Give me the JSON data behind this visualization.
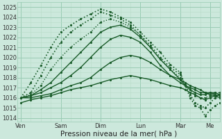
{
  "bg_color": "#cce8dc",
  "grid_color_major": "#99ccb3",
  "grid_color_minor": "#b8ddc8",
  "line_color": "#1a5c2a",
  "ylabel_values": [
    1014,
    1015,
    1016,
    1017,
    1018,
    1019,
    1020,
    1021,
    1022,
    1023,
    1024,
    1025
  ],
  "ylim": [
    1013.6,
    1025.5
  ],
  "x_day_labels": [
    "Ven",
    "Sam",
    "Dim",
    "Lun",
    "Mar",
    "Me"
  ],
  "x_day_positions": [
    0,
    24,
    48,
    72,
    96,
    114
  ],
  "xlabel": "Pression niveau de la mer( hPa )",
  "xlim": [
    -2,
    120
  ],
  "lines": [
    {
      "x": [
        0,
        6,
        12,
        18,
        24,
        30,
        36,
        42,
        48,
        54,
        60,
        66,
        72,
        78,
        84,
        90,
        96,
        99,
        102,
        105,
        108,
        111,
        114,
        117,
        120
      ],
      "y": [
        1016,
        1017.5,
        1019.2,
        1021.0,
        1022.5,
        1023.2,
        1023.8,
        1024.3,
        1024.8,
        1024.5,
        1024.0,
        1023.5,
        1022.5,
        1021.5,
        1020.5,
        1019.3,
        1018.5,
        1017.2,
        1016.0,
        1015.2,
        1015.0,
        1014.2,
        1014.8,
        1015.2,
        1015.5
      ],
      "style": "dotted",
      "lw": 1.2
    },
    {
      "x": [
        0,
        6,
        12,
        18,
        24,
        30,
        36,
        42,
        48,
        54,
        60,
        66,
        72,
        78,
        84,
        90,
        96,
        99,
        102,
        105,
        108,
        111,
        114,
        117,
        120
      ],
      "y": [
        1016,
        1016.5,
        1018.2,
        1020.0,
        1021.5,
        1022.5,
        1023.2,
        1023.8,
        1024.5,
        1024.2,
        1023.8,
        1023.2,
        1022.2,
        1021.2,
        1020.0,
        1019.0,
        1018.3,
        1017.3,
        1016.3,
        1015.5,
        1015.2,
        1015.0,
        1015.5,
        1016.0,
        1016.2
      ],
      "style": "dotted",
      "lw": 1.2
    },
    {
      "x": [
        0,
        6,
        12,
        18,
        24,
        30,
        36,
        42,
        48,
        54,
        60,
        66,
        72,
        78,
        84,
        90,
        96,
        99,
        102,
        105,
        108,
        111,
        114,
        117,
        120
      ],
      "y": [
        1016,
        1016.3,
        1017.2,
        1018.8,
        1020.0,
        1021.0,
        1021.8,
        1022.5,
        1023.5,
        1023.8,
        1023.5,
        1023.0,
        1022.2,
        1021.0,
        1019.8,
        1018.8,
        1018.0,
        1017.3,
        1016.8,
        1016.2,
        1016.0,
        1016.0,
        1016.2,
        1016.5,
        1016.5
      ],
      "style": "dotted",
      "lw": 1.0
    },
    {
      "x": [
        0,
        6,
        12,
        18,
        24,
        30,
        36,
        42,
        48,
        54,
        60,
        66,
        72,
        78,
        84,
        90,
        96,
        99,
        102,
        105,
        108,
        111,
        114,
        117,
        120
      ],
      "y": [
        1016,
        1016.2,
        1016.8,
        1017.5,
        1018.5,
        1019.5,
        1020.5,
        1021.5,
        1022.5,
        1023.0,
        1023.2,
        1022.8,
        1022.0,
        1021.0,
        1019.8,
        1018.8,
        1017.8,
        1017.2,
        1016.8,
        1016.5,
        1016.3,
        1016.3,
        1016.5,
        1016.5,
        1016.3
      ],
      "style": "solid",
      "lw": 1.0
    },
    {
      "x": [
        0,
        6,
        12,
        18,
        24,
        30,
        36,
        42,
        48,
        54,
        60,
        66,
        72,
        78,
        84,
        90,
        96,
        99,
        102,
        105,
        108,
        111,
        114,
        117,
        120
      ],
      "y": [
        1016,
        1016.2,
        1016.5,
        1017.0,
        1017.5,
        1018.2,
        1019.0,
        1020.0,
        1021.0,
        1021.8,
        1022.2,
        1022.0,
        1021.5,
        1020.5,
        1019.2,
        1018.2,
        1017.5,
        1017.2,
        1017.0,
        1016.8,
        1016.5,
        1016.5,
        1016.5,
        1016.3,
        1016.2
      ],
      "style": "solid",
      "lw": 1.0
    },
    {
      "x": [
        0,
        6,
        12,
        18,
        24,
        30,
        36,
        42,
        48,
        54,
        60,
        66,
        72,
        78,
        84,
        90,
        96,
        99,
        102,
        105,
        108,
        111,
        114,
        117,
        120
      ],
      "y": [
        1016,
        1016.0,
        1016.2,
        1016.4,
        1016.8,
        1017.2,
        1017.5,
        1018.0,
        1018.8,
        1019.5,
        1020.0,
        1020.2,
        1020.0,
        1019.5,
        1018.8,
        1018.2,
        1017.8,
        1017.5,
        1017.2,
        1017.0,
        1016.8,
        1016.5,
        1016.3,
        1016.2,
        1016.0
      ],
      "style": "solid",
      "lw": 1.0
    },
    {
      "x": [
        0,
        6,
        12,
        18,
        24,
        30,
        36,
        42,
        48,
        54,
        60,
        66,
        72,
        78,
        84,
        90,
        96,
        99,
        102,
        105,
        108,
        111,
        114,
        117,
        120
      ],
      "y": [
        1015.5,
        1015.8,
        1016.0,
        1016.2,
        1016.5,
        1016.8,
        1017.0,
        1017.2,
        1017.5,
        1017.8,
        1018.0,
        1018.2,
        1018.0,
        1017.8,
        1017.5,
        1017.2,
        1017.0,
        1016.8,
        1016.5,
        1016.3,
        1016.0,
        1015.8,
        1016.0,
        1016.2,
        1016.3
      ],
      "style": "solid",
      "lw": 1.0
    }
  ],
  "marker_size": 2.5,
  "title_fontsize": 7,
  "tick_fontsize": 6,
  "xlabel_fontsize": 7.5
}
